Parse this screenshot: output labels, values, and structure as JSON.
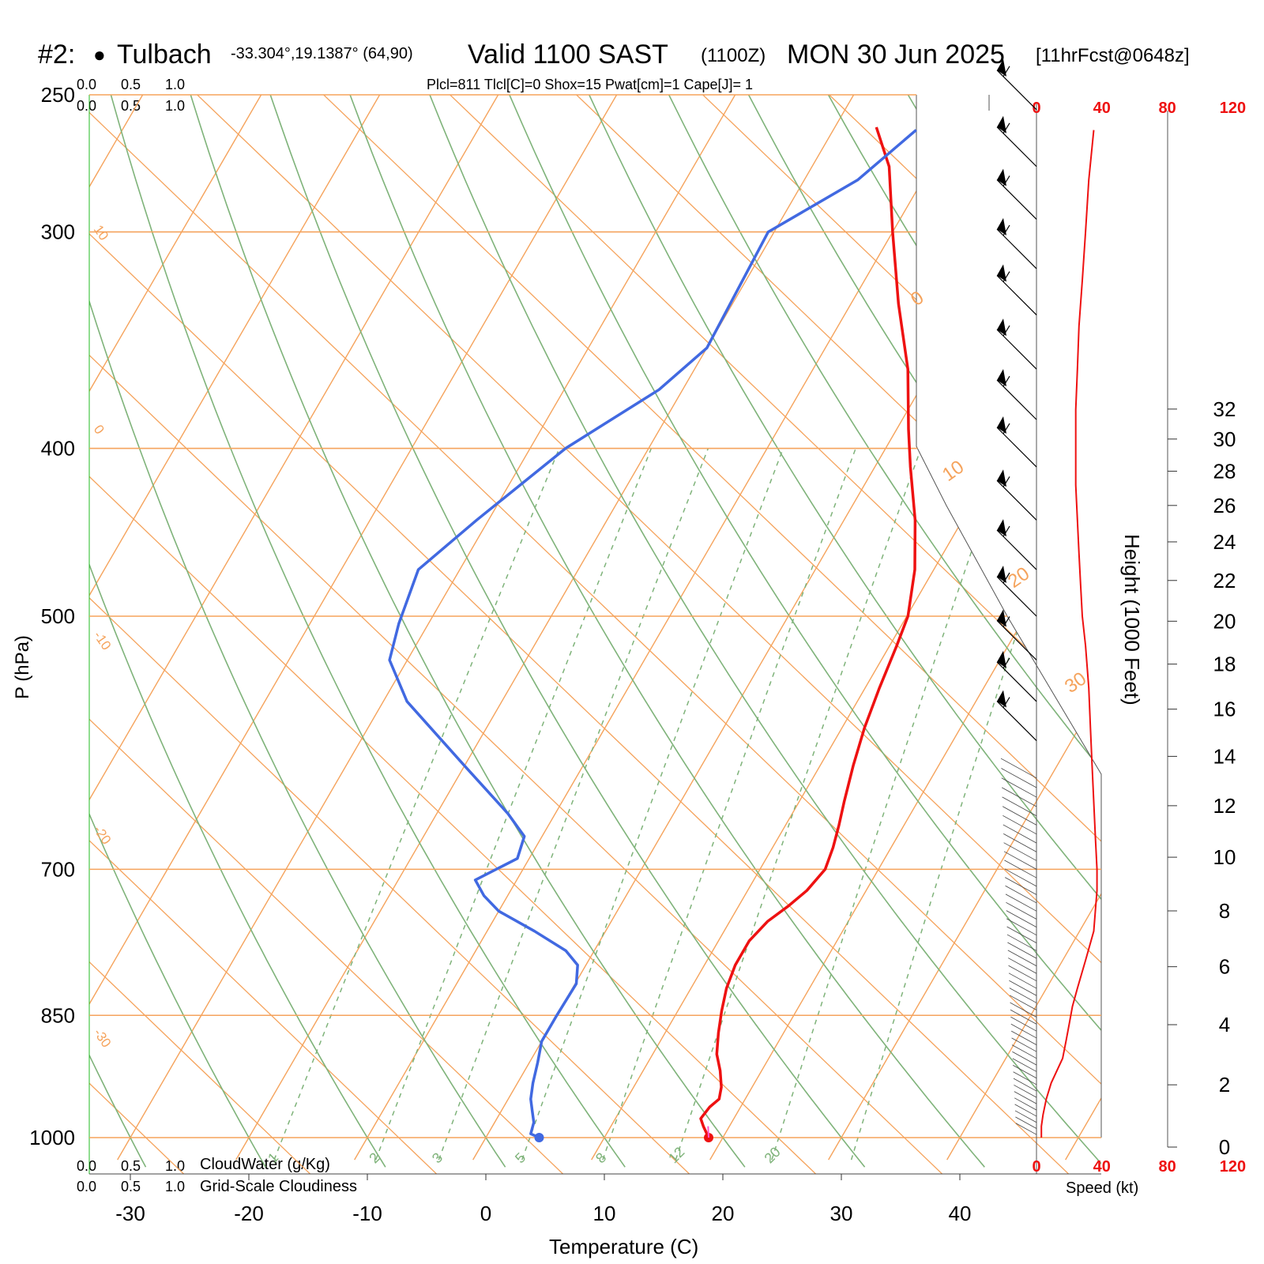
{
  "header": {
    "station_label": "#2:",
    "station_marker": "●",
    "station_name": "Tulbach",
    "location": "-33.304°,19.1387° (64,90)",
    "valid": "Valid 1100 SAST",
    "zulu": "(1100Z)",
    "date": "MON 30 Jun 2025",
    "forecast": "[11hrFcst@0648z]",
    "indices": "Plcl=811 Tlcl[C]=0 Shox=15 Pwat[cm]=1 Cape[J]= 1"
  },
  "cloud_scale": {
    "values": [
      "0.0",
      "0.5",
      "1.0"
    ],
    "cloudwater_label": "CloudWater (g/Kg)",
    "cloudiness_label": "Grid-Scale Cloudiness"
  },
  "colors": {
    "isotherm": "#f5a35c",
    "dry_adiabat": "#7fb37a",
    "mixing_ratio": "#7fb37a",
    "temperature": "#ee1111",
    "dewpoint": "#4169e1",
    "speed": "#ee1111",
    "cloud_green": "#22bb22",
    "index_brown": "#a0522d"
  },
  "chart_data": {
    "type": "line",
    "subtype": "skew-T log-P sounding",
    "xlabel": "Temperature (C)",
    "ylabel": "P (hPa)",
    "x_ticks": [
      -30,
      -20,
      -10,
      0,
      10,
      20,
      30,
      40
    ],
    "x_range": [
      -33,
      47
    ],
    "y_ticks": [
      250,
      300,
      400,
      500,
      700,
      850,
      1000
    ],
    "y_range": [
      1030,
      250
    ],
    "y_scale": "log",
    "isotherm_labels": [
      "10",
      "0",
      "-10",
      "-20",
      "-30",
      "0",
      "10",
      "20",
      "30"
    ],
    "mixing_ratio_labels": [
      "1",
      "2",
      "3",
      "5",
      "8",
      "12",
      "20"
    ],
    "series": [
      {
        "name": "Temperature",
        "points": [
          [
            18.8,
            1000
          ],
          [
            17.8,
            985
          ],
          [
            17.2,
            975
          ],
          [
            17.4,
            960
          ],
          [
            17.8,
            950
          ],
          [
            17.4,
            935
          ],
          [
            16.5,
            915
          ],
          [
            15.4,
            895
          ],
          [
            14.5,
            870
          ],
          [
            13.7,
            845
          ],
          [
            13.0,
            820
          ],
          [
            12.6,
            795
          ],
          [
            12.6,
            770
          ],
          [
            13.2,
            750
          ],
          [
            14.2,
            735
          ],
          [
            15.0,
            720
          ],
          [
            15.5,
            700
          ],
          [
            15.1,
            680
          ],
          [
            14.5,
            660
          ],
          [
            13.8,
            640
          ],
          [
            12.8,
            610
          ],
          [
            11.9,
            580
          ],
          [
            11.2,
            550
          ],
          [
            10.6,
            520
          ],
          [
            10.1,
            500
          ],
          [
            8.4,
            470
          ],
          [
            6.0,
            440
          ],
          [
            3.0,
            410
          ],
          [
            1.0,
            390
          ],
          [
            -2.0,
            360
          ],
          [
            -6.0,
            330
          ],
          [
            -10.0,
            300
          ],
          [
            -13.5,
            275
          ],
          [
            -16.5,
            261
          ]
        ]
      },
      {
        "name": "Dewpoint",
        "points": [
          [
            4.5,
            1000
          ],
          [
            3.6,
            995
          ],
          [
            3.3,
            980
          ],
          [
            2.6,
            965
          ],
          [
            1.9,
            950
          ],
          [
            1.3,
            930
          ],
          [
            0.7,
            905
          ],
          [
            0.0,
            880
          ],
          [
            0.0,
            850
          ],
          [
            0.1,
            815
          ],
          [
            -0.7,
            795
          ],
          [
            -2.4,
            780
          ],
          [
            -6.0,
            760
          ],
          [
            -10.0,
            740
          ],
          [
            -12.0,
            725
          ],
          [
            -13.5,
            710
          ],
          [
            -11.0,
            690
          ],
          [
            -11.5,
            670
          ],
          [
            -14.0,
            650
          ],
          [
            -20.0,
            610
          ],
          [
            -28.0,
            560
          ],
          [
            -31.5,
            530
          ],
          [
            -32.5,
            505
          ],
          [
            -33.5,
            470
          ],
          [
            -31.0,
            440
          ],
          [
            -27.0,
            400
          ],
          [
            -22.0,
            370
          ],
          [
            -20.0,
            350
          ],
          [
            -20.5,
            300
          ],
          [
            -15.5,
            280
          ],
          [
            -13.0,
            262
          ]
        ]
      }
    ],
    "height_axis": {
      "label": "Height (1000 Feet)",
      "ticks": [
        0,
        2,
        4,
        6,
        8,
        10,
        12,
        14,
        16,
        18,
        20,
        22,
        24,
        26,
        28,
        30,
        32
      ]
    },
    "wind_speed": {
      "label": "Speed (kt)",
      "ticks": [
        0,
        40,
        80,
        120
      ],
      "points": [
        [
          3,
          1000
        ],
        [
          3,
          985
        ],
        [
          4,
          970
        ],
        [
          6,
          950
        ],
        [
          9,
          930
        ],
        [
          16,
          900
        ],
        [
          18,
          880
        ],
        [
          20,
          860
        ],
        [
          22,
          840
        ],
        [
          25,
          820
        ],
        [
          30,
          790
        ],
        [
          35,
          760
        ],
        [
          36,
          740
        ],
        [
          37,
          720
        ],
        [
          37,
          700
        ],
        [
          36,
          670
        ],
        [
          35,
          640
        ],
        [
          34,
          610
        ],
        [
          33,
          580
        ],
        [
          32,
          550
        ],
        [
          30,
          520
        ],
        [
          28,
          500
        ],
        [
          27,
          480
        ],
        [
          26,
          460
        ],
        [
          25,
          440
        ],
        [
          24,
          420
        ],
        [
          24,
          400
        ],
        [
          24,
          380
        ],
        [
          25,
          360
        ],
        [
          26,
          340
        ],
        [
          28,
          320
        ],
        [
          30,
          300
        ],
        [
          32,
          280
        ],
        [
          35,
          262
        ]
      ]
    }
  }
}
